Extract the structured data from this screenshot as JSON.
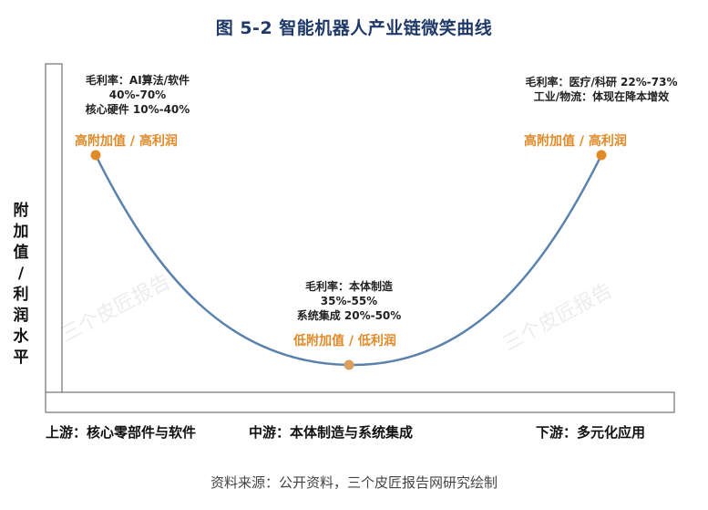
{
  "title": "图 5-2 智能机器人产业链微笑曲线",
  "ylabel_chars": [
    "附",
    "加",
    "值",
    "/",
    "利",
    "润",
    "水",
    "平"
  ],
  "left_note": [
    "毛利率：AI算法/软件",
    "40%-70%",
    "核心硬件 10%-40%"
  ],
  "left_tag": "高附加值 / 高利润",
  "mid_note": [
    "毛利率：本体制造",
    "35%-55%",
    "系统集成 20%-50%"
  ],
  "mid_tag": "低附加值 / 低利润",
  "right_note": [
    "毛利率：医疗/科研 22%-73%",
    "工业/物流：体现在降本增效"
  ],
  "right_tag": "高附加值 / 高利润",
  "stages": {
    "upstream": "上游：核心零部件与软件",
    "midstream": "中游：本体制造与系统集成",
    "downstream": "下游：多元化应用"
  },
  "watermark": "三个皮匠报告",
  "footer": "资料来源：公开资料，三个皮匠报告网研究绘制",
  "colors": {
    "curve": "#5b82ac",
    "marker": "#e08a2a",
    "title": "#1f3a68"
  }
}
